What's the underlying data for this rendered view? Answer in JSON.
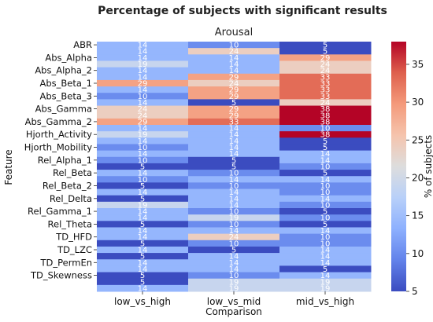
{
  "chart_data": {
    "type": "heatmap",
    "title": "Percentage of subjects with significant results",
    "subtitle": "Arousal",
    "xlabel": "Comparison",
    "ylabel": "Feature",
    "colorbar_label": "% of subjects",
    "colormap": "coolwarm",
    "vmin": 5,
    "vmax": 38,
    "colorbar_ticks": [
      5,
      10,
      15,
      20,
      25,
      30,
      35
    ],
    "columns": [
      "low_vs_high",
      "low_vs_mid",
      "mid_vs_high"
    ],
    "ytick_labels": [
      "ABR",
      "Abs_Alpha",
      "Abs_Alpha_2",
      "Abs_Beta_1",
      "Abs_Beta_3",
      "Abs_Gamma",
      "Abs_Gamma_2",
      "Hjorth_Activity",
      "Hjorth_Mobility",
      "Rel_Alpha_1",
      "Rel_Beta",
      "Rel_Beta_2",
      "Rel_Delta",
      "Rel_Gamma_1",
      "Rel_Theta",
      "TD_HFD",
      "TD_LZC",
      "TD_PermEn",
      "TD_Skewness"
    ],
    "values": [
      [
        14,
        10,
        5
      ],
      [
        14,
        24,
        5
      ],
      [
        14,
        14,
        29
      ],
      [
        19,
        14,
        24
      ],
      [
        14,
        14,
        24
      ],
      [
        14,
        29,
        33
      ],
      [
        29,
        24,
        33
      ],
      [
        14,
        29,
        33
      ],
      [
        10,
        29,
        33
      ],
      [
        14,
        5,
        24
      ],
      [
        24,
        29,
        38
      ],
      [
        24,
        29,
        38
      ],
      [
        29,
        33,
        38
      ],
      [
        14,
        14,
        10
      ],
      [
        19,
        14,
        38
      ],
      [
        14,
        14,
        5
      ],
      [
        10,
        14,
        5
      ],
      [
        14,
        14,
        14
      ],
      [
        10,
        5,
        14
      ],
      [
        5,
        5,
        10
      ],
      [
        14,
        10,
        5
      ],
      [
        10,
        14,
        14
      ],
      [
        5,
        10,
        10
      ],
      [
        14,
        14,
        10
      ],
      [
        5,
        14,
        14
      ],
      [
        19,
        14,
        10
      ],
      [
        14,
        10,
        5
      ],
      [
        14,
        19,
        10
      ],
      [
        5,
        10,
        5
      ],
      [
        14,
        14,
        14
      ],
      [
        14,
        24,
        10
      ],
      [
        5,
        10,
        10
      ],
      [
        14,
        5,
        14
      ],
      [
        5,
        14,
        14
      ],
      [
        14,
        14,
        14
      ],
      [
        14,
        14,
        5
      ],
      [
        5,
        10,
        14
      ],
      [
        5,
        19,
        19
      ],
      [
        14,
        19,
        19
      ]
    ]
  }
}
